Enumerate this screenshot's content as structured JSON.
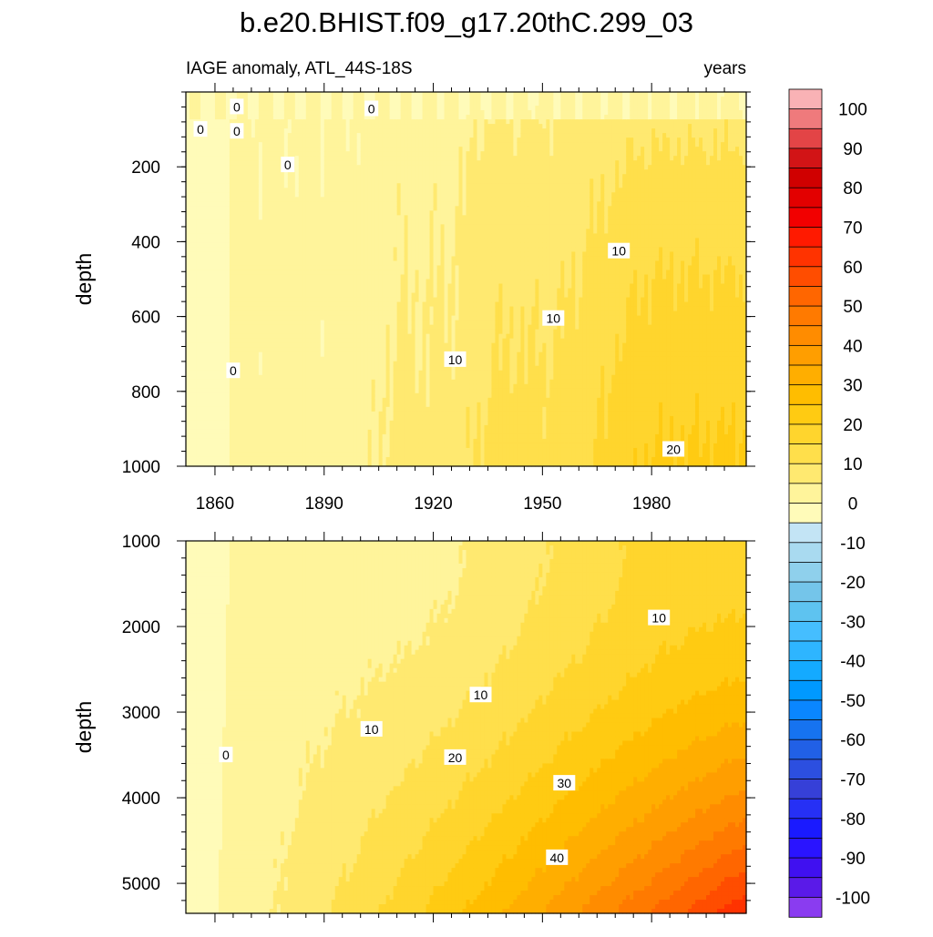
{
  "title": "b.e20.BHIST.f09_g17.20thC.299_03",
  "chart_data": {
    "type": "heatmap",
    "variable_label": "IAGE anomaly, ATL_44S-18S",
    "units_label": "years",
    "x": {
      "range": [
        1852,
        2006
      ],
      "ticks": [
        1860,
        1890,
        1920,
        1950,
        1980
      ],
      "tick_labels": [
        "1860",
        "1890",
        "1920",
        "1950",
        "1980"
      ]
    },
    "panels": [
      {
        "name": "upper",
        "ylabel": "depth",
        "ylim": [
          1000,
          0
        ],
        "y_ticks": [
          200,
          400,
          600,
          800,
          1000
        ],
        "y_tick_labels": [
          "200",
          "400",
          "600",
          "800",
          "1000"
        ],
        "contour_labels": [
          {
            "text": "0",
            "x": 1856,
            "y": 100
          },
          {
            "text": "0",
            "x": 1866,
            "y": 40
          },
          {
            "text": "0",
            "x": 1866,
            "y": 105
          },
          {
            "text": "0",
            "x": 1903,
            "y": 45
          },
          {
            "text": "0",
            "x": 1880,
            "y": 195
          },
          {
            "text": "0",
            "x": 1865,
            "y": 745
          },
          {
            "text": "10",
            "x": 1926,
            "y": 715
          },
          {
            "text": "10",
            "x": 1953,
            "y": 605
          },
          {
            "text": "10",
            "x": 1971,
            "y": 425
          },
          {
            "text": "20",
            "x": 1986,
            "y": 955
          }
        ]
      },
      {
        "name": "lower",
        "ylabel": "depth",
        "ylim": [
          5350,
          1000
        ],
        "y_ticks": [
          1000,
          2000,
          3000,
          4000,
          5000
        ],
        "y_tick_labels": [
          "1000",
          "2000",
          "3000",
          "4000",
          "5000"
        ],
        "contour_labels": [
          {
            "text": "0",
            "x": 1863,
            "y": 3500
          },
          {
            "text": "10",
            "x": 1903,
            "y": 3200
          },
          {
            "text": "10",
            "x": 1933,
            "y": 2800
          },
          {
            "text": "10",
            "x": 1982,
            "y": 1900
          },
          {
            "text": "20",
            "x": 1926,
            "y": 3530
          },
          {
            "text": "30",
            "x": 1956,
            "y": 3830
          },
          {
            "text": "40",
            "x": 1954,
            "y": 4700
          }
        ]
      }
    ],
    "colorbar": {
      "labels": [
        "100",
        "90",
        "80",
        "70",
        "60",
        "50",
        "40",
        "30",
        "20",
        "10",
        "0",
        "-10",
        "-20",
        "-30",
        "-40",
        "-50",
        "-60",
        "-70",
        "-80",
        "-90",
        "-100"
      ],
      "levels_high_to_low": [
        105,
        100,
        95,
        90,
        85,
        80,
        75,
        70,
        65,
        60,
        55,
        50,
        45,
        40,
        35,
        30,
        25,
        20,
        15,
        10,
        5,
        0,
        -5,
        -10,
        -15,
        -20,
        -25,
        -30,
        -35,
        -40,
        -45,
        -50,
        -55,
        -60,
        -65,
        -70,
        -75,
        -80,
        -85,
        -90,
        -95,
        -100,
        -105
      ],
      "colors_high_to_low": [
        "#f9b2b5",
        "#ef7a7c",
        "#e34446",
        "#d21416",
        "#d00000",
        "#e30000",
        "#f20000",
        "#ff1a00",
        "#ff3300",
        "#ff4d00",
        "#ff6600",
        "#ff7a00",
        "#ff8c00",
        "#ff9e00",
        "#ffae00",
        "#ffbd00",
        "#ffcb12",
        "#ffd52d",
        "#ffdf4b",
        "#ffe970",
        "#fff49b",
        "#fffbb9",
        "#c3e4f5",
        "#a9daf0",
        "#8fd0ec",
        "#74c5ea",
        "#5ec3f0",
        "#45beff",
        "#2eb5ff",
        "#14aaff",
        "#0099ff",
        "#0a86ff",
        "#1673f0",
        "#2160e6",
        "#2c4fe0",
        "#3640d8",
        "#2630f5",
        "#1a1aff",
        "#2a14ff",
        "#4010f0",
        "#5a1ae8",
        "#8a3cf0"
      ]
    }
  }
}
